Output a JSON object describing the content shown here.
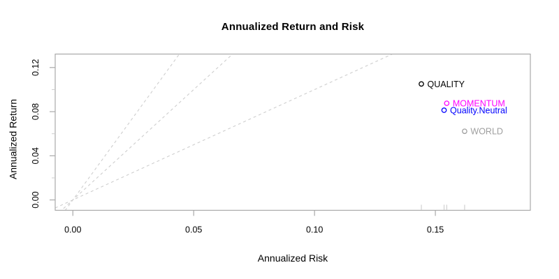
{
  "chart_data": {
    "type": "scatter",
    "title": "Annualized Return and Risk",
    "xlabel": "Annualized Risk",
    "ylabel": "Annualized Return",
    "xlim": [
      -0.0073,
      0.1893
    ],
    "ylim": [
      -0.0094,
      0.1322
    ],
    "grid": false,
    "legend": "none",
    "x_axis": {
      "tick_values": [
        0,
        0.05,
        0.1,
        0.15
      ],
      "tick_labels": [
        "0.00",
        "0.05",
        "0.10",
        "0.15"
      ]
    },
    "y_axis": {
      "major_tick_values": [
        0,
        0.04,
        0.08,
        0.12
      ],
      "major_tick_labels": [
        "0.00",
        "0.04",
        "0.08",
        "0.12"
      ],
      "minor_tick_values": [
        0.02,
        0.06,
        0.1
      ]
    },
    "points": [
      {
        "label": "QUALITY",
        "risk": 0.1442,
        "return": 0.1051,
        "color": "#000000"
      },
      {
        "label": "MOMENTUM",
        "risk": 0.1547,
        "return": 0.0876,
        "color": "#FF00FF"
      },
      {
        "label": "Quality.Neutral",
        "risk": 0.1536,
        "return": 0.0813,
        "color": "#0000FF"
      },
      {
        "label": "WORLD",
        "risk": 0.1621,
        "return": 0.0622,
        "color": "#9E9E9E"
      }
    ],
    "sharpe_lines": {
      "slopes": [
        1,
        2,
        3
      ],
      "origin_return": 0,
      "style": "dashed"
    },
    "rug_marks": "one tick per point risk on bottom axis",
    "colors": {
      "sharpe_line": "#CECECE",
      "box": "#A9A9A9",
      "major_tick": "#A9A9A9",
      "minor_tick": "#CCCCCC",
      "rug": "#CCCCCC",
      "text": "#000000"
    }
  }
}
